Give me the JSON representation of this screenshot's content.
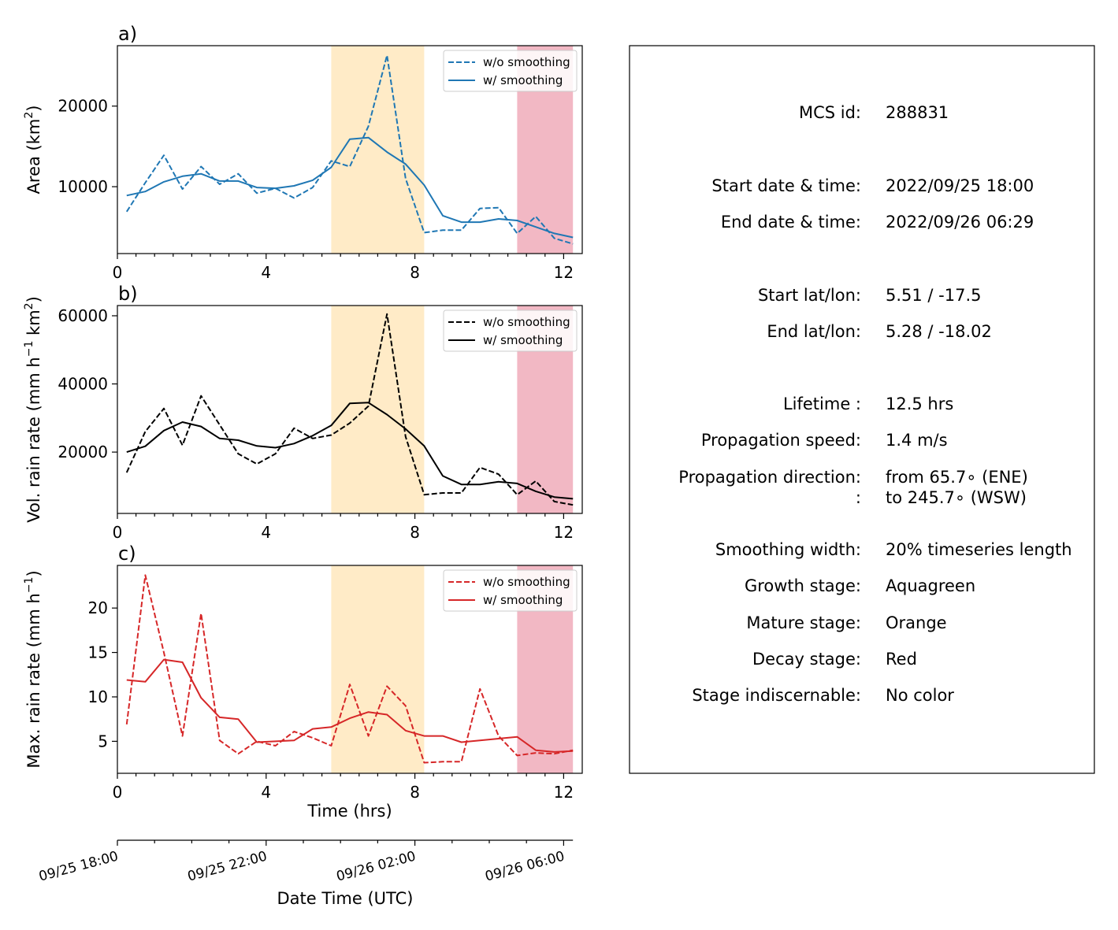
{
  "chart_data": [
    {
      "panel": "a)",
      "type": "line",
      "xlabel": "",
      "ylabel": "Area  (km$^2$)",
      "ylabel_parts": [
        "Area  (km",
        "2",
        ")"
      ],
      "xlim": [
        0,
        12.5
      ],
      "ylim": [
        1700,
        27500
      ],
      "xticks": [
        0,
        4,
        8,
        12
      ],
      "yticks": [
        10000,
        20000
      ],
      "color": "#1f77b4",
      "stages": [
        {
          "stage": "mature",
          "x_from": 5.75,
          "x_to": 8.25,
          "color": "#ffebc7"
        },
        {
          "stage": "decay",
          "x_from": 10.75,
          "x_to": 12.25,
          "color": "#f2b8c4"
        }
      ],
      "series": [
        {
          "name": "w/o smoothing",
          "style": "dashed",
          "x": [
            0.25,
            0.75,
            1.25,
            1.75,
            2.25,
            2.75,
            3.25,
            3.75,
            4.25,
            4.75,
            5.25,
            5.75,
            6.25,
            6.75,
            7.25,
            7.75,
            8.25,
            8.75,
            9.25,
            9.75,
            10.25,
            10.75,
            11.25,
            11.75,
            12.25
          ],
          "values": [
            6900,
            10500,
            13900,
            9700,
            12500,
            10300,
            11600,
            9200,
            9800,
            8600,
            9900,
            13200,
            12500,
            17500,
            26300,
            11000,
            4300,
            4600,
            4600,
            7300,
            7400,
            4200,
            6300,
            3600,
            2900
          ]
        },
        {
          "name": "w/ smoothing",
          "style": "solid",
          "x": [
            0.25,
            0.75,
            1.25,
            1.75,
            2.25,
            2.75,
            3.25,
            3.75,
            4.25,
            4.75,
            5.25,
            5.75,
            6.25,
            6.75,
            7.25,
            7.75,
            8.25,
            8.75,
            9.25,
            9.75,
            10.25,
            10.75,
            11.25,
            11.75,
            12.25
          ],
          "values": [
            8900,
            9400,
            10600,
            11300,
            11600,
            10700,
            10700,
            9900,
            9800,
            10100,
            10800,
            12400,
            15900,
            16100,
            14300,
            12800,
            10200,
            6400,
            5600,
            5600,
            6000,
            5800,
            5000,
            4200,
            3700
          ]
        }
      ]
    },
    {
      "panel": "b)",
      "type": "line",
      "xlabel": "",
      "ylabel": "Vol. rain rate (mm h$^{-1}$ km$^2$)",
      "ylabel_parts": [
        "Vol. rain rate (mm h",
        "−1",
        " km",
        "2",
        ")"
      ],
      "xlim": [
        0,
        12.5
      ],
      "ylim": [
        2000,
        63000
      ],
      "xticks": [
        0,
        4,
        8,
        12
      ],
      "yticks": [
        20000,
        40000,
        60000
      ],
      "color": "#000000",
      "stages": [
        {
          "stage": "mature",
          "x_from": 5.75,
          "x_to": 8.25,
          "color": "#ffebc7"
        },
        {
          "stage": "decay",
          "x_from": 10.75,
          "x_to": 12.25,
          "color": "#f2b8c4"
        }
      ],
      "series": [
        {
          "name": "w/o smoothing",
          "style": "dashed",
          "x": [
            0.25,
            0.75,
            1.25,
            1.75,
            2.25,
            2.75,
            3.25,
            3.75,
            4.25,
            4.75,
            5.25,
            5.75,
            6.25,
            6.75,
            7.25,
            7.75,
            8.25,
            8.75,
            9.25,
            9.75,
            10.25,
            10.75,
            11.25,
            11.75,
            12.25
          ],
          "values": [
            14000,
            26000,
            32800,
            22000,
            36500,
            28000,
            19500,
            16500,
            19500,
            27000,
            24000,
            25000,
            28500,
            33500,
            60500,
            24500,
            7500,
            8000,
            8000,
            15500,
            13500,
            7500,
            11500,
            5500,
            4500
          ]
        },
        {
          "name": "w/ smoothing",
          "style": "solid",
          "x": [
            0.25,
            0.75,
            1.25,
            1.75,
            2.25,
            2.75,
            3.25,
            3.75,
            4.25,
            4.75,
            5.25,
            5.75,
            6.25,
            6.75,
            7.25,
            7.75,
            8.25,
            8.75,
            9.25,
            9.75,
            10.25,
            10.75,
            11.25,
            11.75,
            12.25
          ],
          "values": [
            20000,
            21700,
            26300,
            28800,
            27500,
            24000,
            23500,
            21800,
            21300,
            22500,
            24800,
            27800,
            34300,
            34500,
            31000,
            26800,
            21800,
            13000,
            10500,
            10500,
            11300,
            10800,
            8500,
            6800,
            6300
          ]
        }
      ]
    },
    {
      "panel": "c)",
      "type": "line",
      "xlabel": "Time (hrs)",
      "ylabel": "Max. rain rate  (mm h$^{-1}$)",
      "ylabel_parts": [
        "Max. rain rate  (mm h",
        "−1",
        ")"
      ],
      "xlim": [
        0,
        12.5
      ],
      "ylim": [
        1.4,
        24.8
      ],
      "xticks": [
        0,
        4,
        8,
        12
      ],
      "yticks": [
        5,
        10,
        15,
        20
      ],
      "color": "#d62728",
      "stages": [
        {
          "stage": "mature",
          "x_from": 5.75,
          "x_to": 8.25,
          "color": "#ffebc7"
        },
        {
          "stage": "decay",
          "x_from": 10.75,
          "x_to": 12.25,
          "color": "#f2b8c4"
        }
      ],
      "series": [
        {
          "name": "w/o smoothing",
          "style": "dashed",
          "x": [
            0.25,
            0.75,
            1.25,
            1.75,
            2.25,
            2.75,
            3.25,
            3.75,
            4.25,
            4.75,
            5.25,
            5.75,
            6.25,
            6.75,
            7.25,
            7.75,
            8.25,
            8.75,
            9.25,
            9.75,
            10.25,
            10.75,
            11.25,
            11.75,
            12.25
          ],
          "values": [
            6.9,
            23.7,
            15.0,
            5.6,
            19.4,
            5.1,
            3.6,
            5.0,
            4.5,
            6.1,
            5.4,
            4.5,
            11.4,
            5.6,
            11.2,
            9.0,
            2.6,
            2.7,
            2.7,
            10.9,
            5.6,
            3.4,
            3.7,
            3.6,
            4.0
          ]
        },
        {
          "name": "w/ smoothing",
          "style": "solid",
          "x": [
            0.25,
            0.75,
            1.25,
            1.75,
            2.25,
            2.75,
            3.25,
            3.75,
            4.25,
            4.75,
            5.25,
            5.75,
            6.25,
            6.75,
            7.25,
            7.75,
            8.25,
            8.75,
            9.25,
            9.75,
            10.25,
            10.75,
            11.25,
            11.75,
            12.25
          ],
          "values": [
            11.9,
            11.7,
            14.2,
            13.9,
            9.9,
            7.7,
            7.5,
            4.9,
            5.0,
            5.1,
            6.4,
            6.6,
            7.6,
            8.3,
            8.0,
            6.2,
            5.6,
            5.6,
            4.9,
            5.1,
            5.3,
            5.5,
            4.0,
            3.8,
            3.9
          ]
        }
      ]
    }
  ],
  "date_axis": {
    "xlabel": "Date Time (UTC)",
    "ticks": [
      {
        "hours": 0,
        "label": "09/25 18:00"
      },
      {
        "hours": 4,
        "label": "09/25 22:00"
      },
      {
        "hours": 8,
        "label": "09/26 02:00"
      },
      {
        "hours": 12,
        "label": "09/26 06:00"
      }
    ]
  },
  "info": [
    {
      "label": "MCS id:",
      "value": "288831"
    },
    {
      "label": "Start date & time:",
      "value": "2022/09/25 18:00"
    },
    {
      "label": "End date & time:",
      "value": "2022/09/26 06:29"
    },
    {
      "label": "Start lat/lon:",
      "value": "5.51 / -17.5"
    },
    {
      "label": "End lat/lon:",
      "value": "5.28 / -18.02"
    },
    {
      "label": "Lifetime :",
      "value": "12.5 hrs"
    },
    {
      "label": "Propagation speed:",
      "value": "1.4 m/s"
    },
    {
      "label": "Propagation direction:",
      "value": "from  65.7∘ (ENE)"
    },
    {
      "label": ":",
      "value": "to   245.7∘ (WSW)"
    },
    {
      "label": "Smoothing width:",
      "value": "20% timeseries length"
    },
    {
      "label": "Growth stage:",
      "value": "Aquagreen"
    },
    {
      "label": "Mature stage:",
      "value": "Orange"
    },
    {
      "label": "Decay stage:",
      "value": "Red"
    },
    {
      "label": "Stage indiscernable:",
      "value": "No color"
    }
  ]
}
